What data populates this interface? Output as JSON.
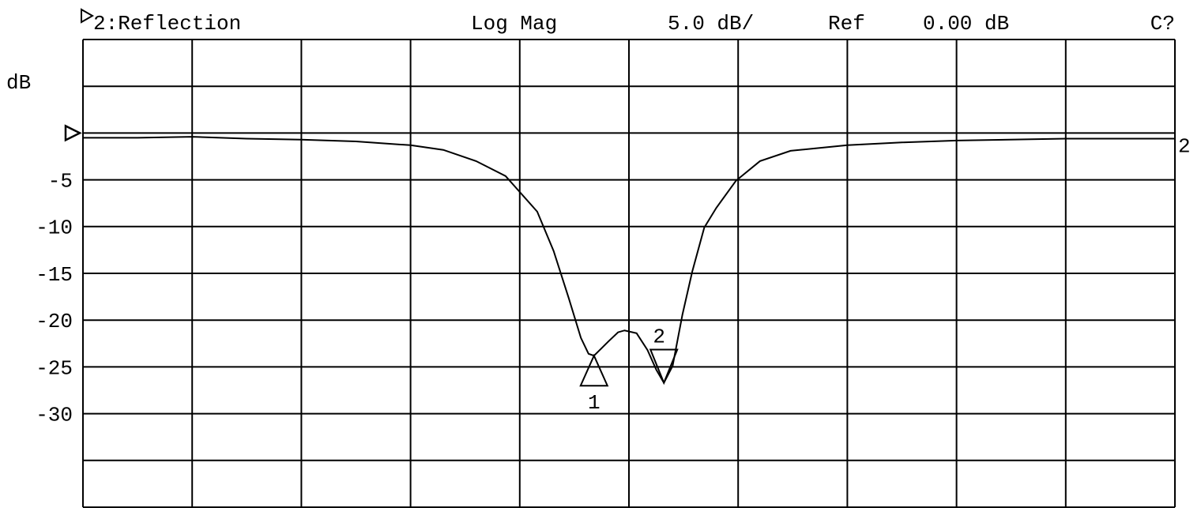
{
  "chart_data": {
    "type": "line",
    "title": "2:Reflection",
    "format": "Log Mag",
    "scale": {
      "value": 5,
      "label": "5.0 dB/"
    },
    "ref_label": "Ref",
    "ref": {
      "value": 0,
      "label": "0.00 dB"
    },
    "status": "C?",
    "y_label": "dB",
    "trace_label": "2",
    "color": "#000000",
    "xlim": [
      0,
      10
    ],
    "xticks": [
      0,
      1,
      2,
      3,
      4,
      5,
      6,
      7,
      8,
      9,
      10
    ],
    "ylim": [
      -40,
      10
    ],
    "yticks": [
      -5,
      -10,
      -15,
      -20,
      -25,
      -30
    ],
    "x": [
      0,
      0.5,
      1,
      1.5,
      2,
      2.5,
      3,
      3.3,
      3.6,
      3.87,
      4.0,
      4.16,
      4.31,
      4.45,
      4.56,
      4.63,
      4.68,
      4.75,
      4.81,
      4.9,
      4.96,
      5.07,
      5.17,
      5.25,
      5.32,
      5.4,
      5.49,
      5.58,
      5.69,
      5.8,
      5.98,
      6.2,
      6.48,
      7,
      7.5,
      8,
      9,
      10
    ],
    "values": [
      -0.5,
      -0.5,
      -0.4,
      -0.6,
      -0.7,
      -0.9,
      -1.3,
      -1.8,
      -3,
      -4.6,
      -6.3,
      -8.4,
      -12.6,
      -17.7,
      -21.9,
      -23.6,
      -23.8,
      -23,
      -22.3,
      -21.3,
      -21.1,
      -21.4,
      -23.2,
      -25.3,
      -26.7,
      -24.9,
      -19.4,
      -14.8,
      -10.1,
      -8,
      -5.1,
      -3,
      -1.9,
      -1.3,
      -1,
      -0.8,
      -0.6,
      -0.6
    ],
    "markers": [
      {
        "label": "1",
        "x": 4.68,
        "value": -23.8
      },
      {
        "label": "2",
        "x": 5.32,
        "value": -26.7
      }
    ]
  }
}
